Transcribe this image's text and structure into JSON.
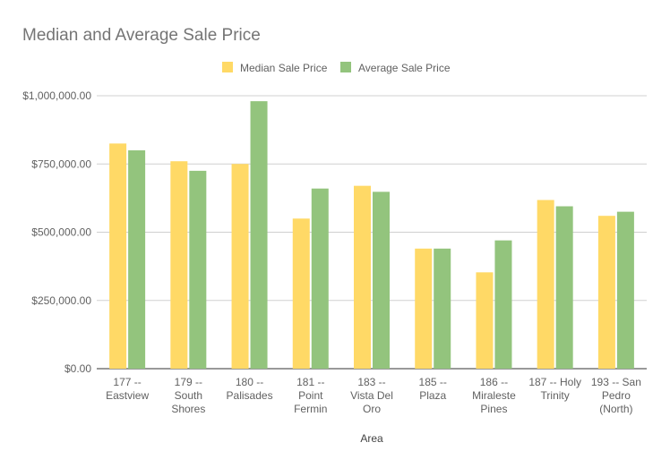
{
  "chart_data": {
    "type": "bar",
    "title": "Median and Average Sale Price",
    "xlabel": "Area",
    "ylabel": "",
    "ylim": [
      0,
      1000000
    ],
    "yticks": [
      "$0.00",
      "$250,000.00",
      "$500,000.00",
      "$750,000.00",
      "$1,000,000.00"
    ],
    "ytick_values": [
      0,
      250000,
      500000,
      750000,
      1000000
    ],
    "grid": true,
    "legend_position": "top",
    "categories": [
      [
        "177 --",
        "Eastview"
      ],
      [
        "179 --",
        "South",
        "Shores"
      ],
      [
        "180 --",
        "Palisades"
      ],
      [
        "181 --",
        "Point",
        "Fermin"
      ],
      [
        "183 --",
        "Vista Del",
        "Oro"
      ],
      [
        "185 --",
        "Plaza"
      ],
      [
        "186 --",
        "Miraleste",
        "Pines"
      ],
      [
        "187 -- Holy",
        "Trinity"
      ],
      [
        "193 -- San",
        "Pedro",
        "(North)"
      ]
    ],
    "series": [
      {
        "name": "Median Sale Price",
        "color": "#FFD966",
        "values": [
          825000,
          760000,
          750000,
          550000,
          670000,
          440000,
          353000,
          618000,
          560000
        ]
      },
      {
        "name": "Average Sale Price",
        "color": "#93C47D",
        "values": [
          800000,
          725000,
          980000,
          660000,
          648000,
          440000,
          470000,
          595000,
          575000
        ]
      }
    ]
  }
}
